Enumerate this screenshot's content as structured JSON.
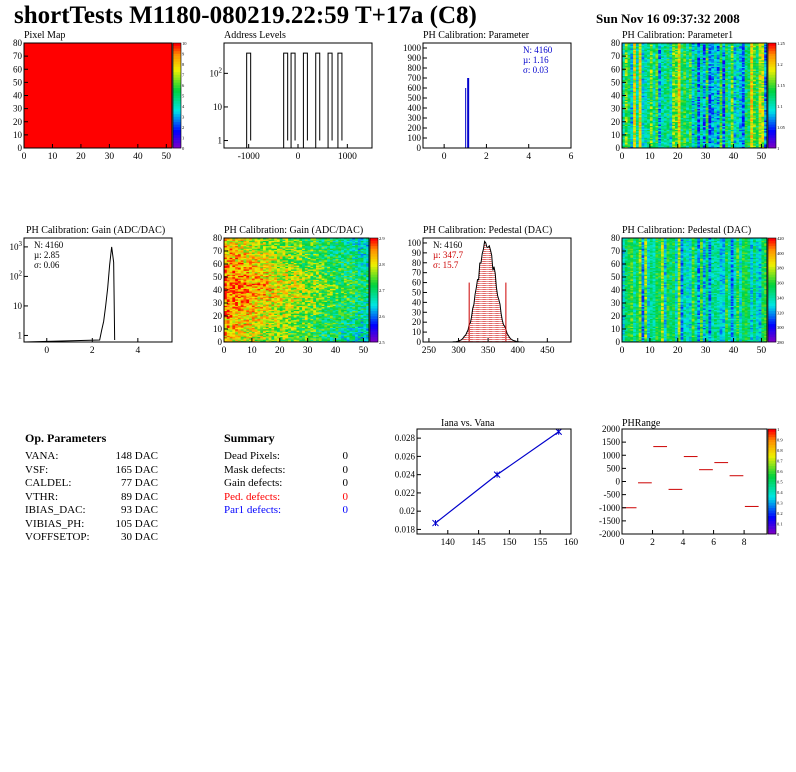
{
  "header": {
    "title": "shortTests M1180-080219.22:59 T+17a (C8)",
    "date": "Sun Nov 16 09:37:32 2008"
  },
  "colors": {
    "axis": "#000000",
    "blue": "#0000cc",
    "red": "#cc0000"
  },
  "op_params": {
    "title": "Op. Parameters",
    "rows": [
      {
        "key": "VANA:",
        "value": "148 DAC"
      },
      {
        "key": "VSF:",
        "value": "165 DAC"
      },
      {
        "key": "CALDEL:",
        "value": "77 DAC"
      },
      {
        "key": "VTHR:",
        "value": "89 DAC"
      },
      {
        "key": "IBIAS_DAC:",
        "value": "93 DAC"
      },
      {
        "key": "VIBIAS_PH:",
        "value": "105 DAC"
      },
      {
        "key": "VOFFSETOP:",
        "value": "30 DAC"
      }
    ]
  },
  "summary": {
    "title": "Summary",
    "rows": [
      {
        "key": "Dead Pixels:",
        "value": "0",
        "color": "#000000"
      },
      {
        "key": "Mask defects:",
        "value": "0",
        "color": "#000000"
      },
      {
        "key": "Gain defects:",
        "value": "0",
        "color": "#000000"
      },
      {
        "key": "Ped. defects:",
        "value": "0",
        "color": "#ff0000"
      },
      {
        "key": "Par1 defects:",
        "value": "0",
        "color": "#0000ff"
      }
    ]
  },
  "chart_data": [
    {
      "type": "heatmap",
      "title": "Pixel Map",
      "x_range": [
        0,
        52
      ],
      "y_range": [
        0,
        80
      ],
      "z_range": [
        0,
        10
      ],
      "xticks": [
        "0",
        "10",
        "20",
        "30",
        "40",
        "50"
      ],
      "yticks": [
        "0",
        "10",
        "20",
        "30",
        "40",
        "50",
        "60",
        "70",
        "80"
      ],
      "zticks": [
        "0",
        "1",
        "2",
        "3",
        "4",
        "5",
        "6",
        "7",
        "8",
        "9",
        "10"
      ],
      "value": 10,
      "pattern": "uniform"
    },
    {
      "type": "bar",
      "title": "Address Levels",
      "x_range": [
        -1500,
        1500
      ],
      "log_y": true,
      "xticks": [
        "-1000",
        "0",
        "1000"
      ],
      "yticks": [
        "1",
        "10",
        "10^2"
      ],
      "peaks_x": [
        -1000,
        -250,
        -100,
        150,
        400,
        650,
        850
      ],
      "peak_height": 400
    },
    {
      "type": "bar",
      "title": "PH Calibration: Parameter",
      "x_range": [
        -1,
        6
      ],
      "y_range": [
        0,
        1050
      ],
      "xticks": [
        "0",
        "2",
        "4",
        "6"
      ],
      "yticks": [
        "0",
        "100",
        "200",
        "300",
        "400",
        "500",
        "600",
        "700",
        "800",
        "900",
        "1000"
      ],
      "stats": [
        "N: 4160",
        "µ: 1.16",
        "σ: 0.03"
      ],
      "peak": {
        "x": 1.16,
        "height": 700
      }
    },
    {
      "type": "heatmap",
      "title": "PH Calibration: Parameter1",
      "x_range": [
        0,
        52
      ],
      "y_range": [
        0,
        80
      ],
      "xticks": [
        "0",
        "10",
        "20",
        "30",
        "40",
        "50"
      ],
      "yticks": [
        "0",
        "10",
        "20",
        "30",
        "40",
        "50",
        "60",
        "70",
        "80"
      ],
      "zticks": [
        "1",
        "1.05",
        "1.1",
        "1.15",
        "1.2",
        "1.25"
      ],
      "pattern": "column-stripes-1"
    },
    {
      "type": "bar",
      "title": "PH Calibration: Gain (ADC/DAC)",
      "x_range": [
        -1,
        5.5
      ],
      "log_y": true,
      "xticks": [
        "0",
        "2",
        "4"
      ],
      "yticks": [
        "1",
        "10",
        "10^2",
        "10^3"
      ],
      "stats": [
        "N: 4160",
        "µ: 2.85",
        "σ: 0.06"
      ],
      "peak": {
        "x": 2.85,
        "height": 1000
      }
    },
    {
      "type": "heatmap",
      "title": "PH Calibration: Gain (ADC/DAC)",
      "x_range": [
        0,
        52
      ],
      "y_range": [
        0,
        80
      ],
      "xticks": [
        "0",
        "10",
        "20",
        "30",
        "40",
        "50"
      ],
      "yticks": [
        "0",
        "10",
        "20",
        "30",
        "40",
        "50",
        "60",
        "70",
        "80"
      ],
      "zticks": [
        "2.5",
        "2.6",
        "2.7",
        "2.8",
        "2.9"
      ],
      "pattern": "gradient-left-red"
    },
    {
      "type": "bar",
      "title": "PH Calibration: Pedestal (DAC)",
      "x_range": [
        240,
        490
      ],
      "y_range": [
        0,
        105
      ],
      "xticks": [
        "250",
        "300",
        "350",
        "400",
        "450"
      ],
      "yticks": [
        "0",
        "10",
        "20",
        "30",
        "40",
        "50",
        "60",
        "70",
        "80",
        "90",
        "100"
      ],
      "stats": [
        "N: 4160",
        "µ: 347.7",
        "σ: 15.7"
      ],
      "gauss": {
        "mu": 347.7,
        "sigma": 15.7,
        "peak": 97
      },
      "cut_lines": [
        318,
        380
      ]
    },
    {
      "type": "heatmap",
      "title": "PH Calibration: Pedestal (DAC)",
      "x_range": [
        0,
        52
      ],
      "y_range": [
        0,
        80
      ],
      "xticks": [
        "0",
        "10",
        "20",
        "30",
        "40",
        "50"
      ],
      "yticks": [
        "0",
        "10",
        "20",
        "30",
        "40",
        "50",
        "60",
        "70",
        "80"
      ],
      "zticks": [
        "280",
        "300",
        "320",
        "340",
        "360",
        "380",
        "400",
        "420"
      ],
      "pattern": "column-stripes-2"
    },
    {
      "type": "line",
      "title": "Iana vs. Vana",
      "x_range": [
        135,
        160
      ],
      "y_range": [
        0.0175,
        0.029
      ],
      "xticks": [
        "140",
        "145",
        "150",
        "155",
        "160"
      ],
      "yticks": [
        "0.018",
        "0.02",
        "0.022",
        "0.024",
        "0.026",
        "0.028"
      ],
      "x": [
        138,
        148,
        158
      ],
      "y": [
        0.0187,
        0.024,
        0.0287
      ]
    },
    {
      "type": "scatter",
      "title": "PHRange",
      "x_range": [
        0,
        9.5
      ],
      "y_range": [
        -2000,
        2000
      ],
      "xticks": [
        "0",
        "2",
        "4",
        "6",
        "8"
      ],
      "yticks": [
        "-2000",
        "-1500",
        "-1000",
        "-500",
        "0",
        "500",
        "1000",
        "1500",
        "2000"
      ],
      "zticks": [
        "0",
        "0.1",
        "0.2",
        "0.3",
        "0.4",
        "0.5",
        "0.6",
        "0.7",
        "0.8",
        "0.9",
        "1"
      ],
      "x": [
        0.5,
        1.5,
        2.5,
        3.5,
        4.5,
        5.5,
        6.5,
        7.5,
        8.5
      ],
      "y": [
        -1000,
        -50,
        1330,
        -300,
        950,
        450,
        720,
        220,
        -950
      ]
    }
  ]
}
